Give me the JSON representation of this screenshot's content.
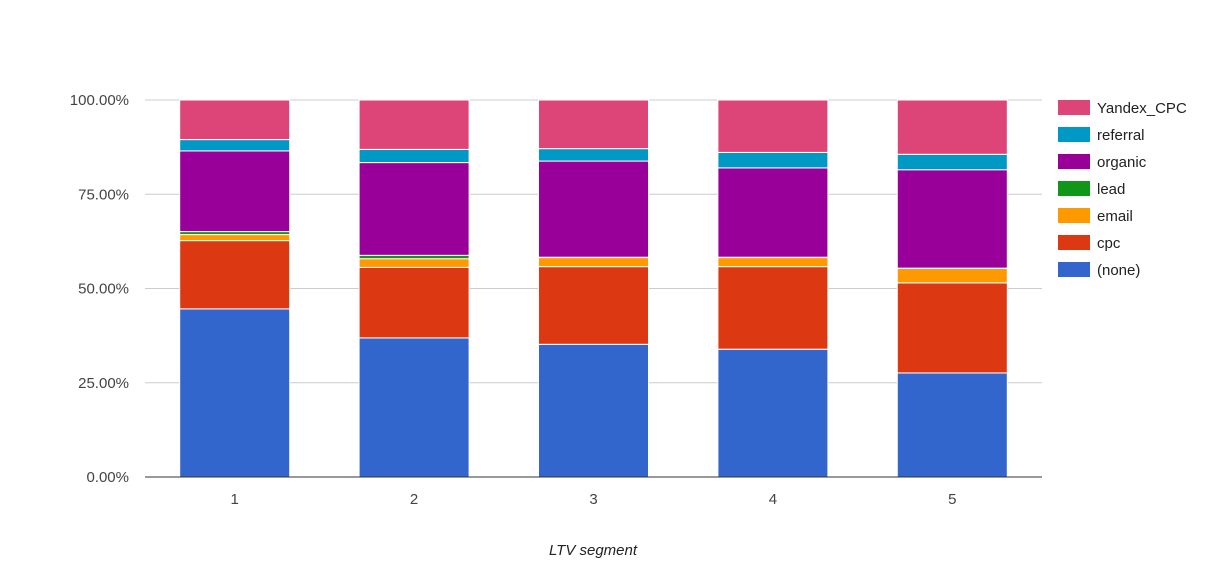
{
  "chart_data": {
    "type": "bar",
    "stacked": true,
    "percent": true,
    "title": "",
    "xlabel": "LTV segment",
    "ylabel": "",
    "ylim": [
      0,
      100
    ],
    "y_ticks": [
      "0.00%",
      "25.00%",
      "50.00%",
      "75.00%",
      "100.00%"
    ],
    "grid": true,
    "legend_position": "right",
    "categories": [
      "1",
      "2",
      "3",
      "4",
      "5"
    ],
    "series": [
      {
        "name": "(none)",
        "color": "#3366cc",
        "values": [
          44.6,
          36.9,
          35.2,
          33.9,
          27.6
        ]
      },
      {
        "name": "cpc",
        "color": "#dc3912",
        "values": [
          18.1,
          18.7,
          20.6,
          21.9,
          23.9
        ]
      },
      {
        "name": "email",
        "color": "#ff9900",
        "values": [
          1.6,
          2.3,
          2.4,
          2.4,
          3.8
        ]
      },
      {
        "name": "lead",
        "color": "#109618",
        "values": [
          0.8,
          0.9,
          0.1,
          0.1,
          0.1
        ]
      },
      {
        "name": "organic",
        "color": "#990099",
        "values": [
          21.4,
          24.6,
          25.5,
          23.7,
          26.1
        ]
      },
      {
        "name": "referral",
        "color": "#0099c6",
        "values": [
          3.0,
          3.5,
          3.3,
          4.1,
          4.1
        ]
      },
      {
        "name": "Yandex_CPC",
        "color": "#dd4477",
        "values": [
          10.5,
          13.1,
          12.9,
          13.9,
          14.4
        ]
      }
    ]
  }
}
